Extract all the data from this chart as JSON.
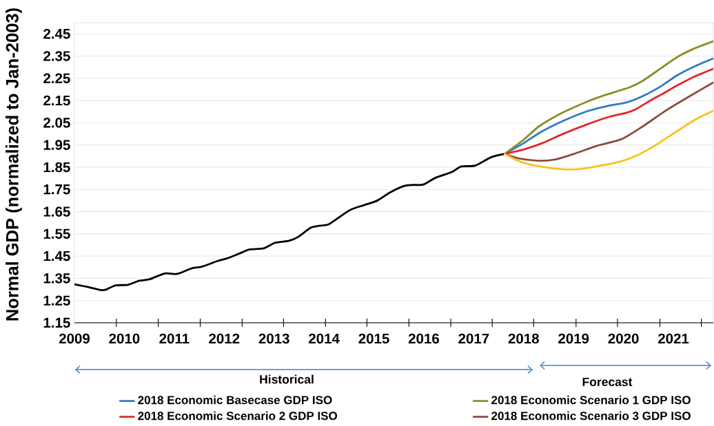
{
  "chart_data": {
    "type": "line",
    "ylabel": "Normal GDP (normalized to Jan-2003)",
    "xlim": [
      2009,
      2021.8
    ],
    "ylim": [
      1.15,
      2.5
    ],
    "xticks": [
      2009,
      {
        "value": 2009.84,
        "label": null
      },
      2010,
      {
        "value": 2010.68,
        "label": null
      },
      2011,
      {
        "value": 2011.52,
        "label": null
      },
      2012,
      {
        "value": 2012.36,
        "label": null
      },
      2013,
      {
        "value": 2013.19,
        "label": null
      },
      2014,
      {
        "value": 2014.03,
        "label": null
      },
      {
        "value": 2014.86,
        "label": null
      },
      2015,
      {
        "value": 2015.7,
        "label": null
      },
      2016,
      {
        "value": 2016.54,
        "label": null
      },
      2017,
      {
        "value": 2017.37,
        "label": null
      },
      2018,
      {
        "value": 2018.2,
        "label": null
      },
      2019,
      {
        "value": 2019.05,
        "label": null
      },
      {
        "value": 2019.88,
        "label": null
      },
      2020,
      {
        "value": 2020.73,
        "label": null
      },
      2021,
      {
        "value": 2021.56,
        "label": null
      }
    ],
    "yticks": [
      1.15,
      1.25,
      1.35,
      1.45,
      1.55,
      1.65,
      1.75,
      1.85,
      1.95,
      2.05,
      2.15,
      2.25,
      2.35,
      2.45
    ],
    "grid": "y",
    "legend": "bottom",
    "marker": "none",
    "line_style": "solid",
    "annotations": [
      "Historical",
      "Forecast"
    ],
    "series": [
      {
        "color": "#000000",
        "x": [
          2009.0,
          2009.29,
          2009.54,
          2009.64,
          2009.82,
          2010.07,
          2010.3,
          2010.51,
          2010.81,
          2011.06,
          2011.36,
          2011.55,
          2011.87,
          2012.05,
          2012.33,
          2012.51,
          2012.79,
          2013.02,
          2013.3,
          2013.48,
          2013.73,
          2013.87,
          2014.08,
          2014.26,
          2014.54,
          2014.81,
          2015.07,
          2015.32,
          2015.6,
          2015.78,
          2015.99,
          2016.24,
          2016.56,
          2016.75,
          2017.03,
          2017.35,
          2017.62
        ],
        "values": [
          1.323,
          1.31,
          1.297,
          1.3,
          1.318,
          1.321,
          1.339,
          1.346,
          1.372,
          1.37,
          1.396,
          1.402,
          1.428,
          1.439,
          1.464,
          1.48,
          1.485,
          1.51,
          1.519,
          1.536,
          1.577,
          1.585,
          1.592,
          1.618,
          1.659,
          1.68,
          1.7,
          1.736,
          1.765,
          1.77,
          1.772,
          1.803,
          1.828,
          1.853,
          1.857,
          1.895,
          1.91
        ]
      },
      {
        "name": "2018 Economic Basecase GDP ISO",
        "color": "#2b7cc4",
        "x": [
          2017.62,
          2017.99,
          2018.36,
          2018.82,
          2019.28,
          2019.69,
          2020.06,
          2020.39,
          2020.75,
          2021.08,
          2021.44,
          2021.79
        ],
        "values": [
          1.91,
          1.957,
          2.01,
          2.061,
          2.102,
          2.126,
          2.141,
          2.17,
          2.214,
          2.264,
          2.305,
          2.338
        ]
      },
      {
        "name": "2018 Economic Scenario 1 GDP ISO",
        "color": "#8c8c26",
        "x": [
          2017.62,
          2017.99,
          2018.31,
          2018.73,
          2019.23,
          2019.6,
          2019.97,
          2020.16,
          2020.39,
          2020.75,
          2021.08,
          2021.4,
          2021.79
        ],
        "values": [
          1.91,
          1.972,
          2.034,
          2.09,
          2.141,
          2.172,
          2.198,
          2.213,
          2.239,
          2.295,
          2.346,
          2.382,
          2.416
        ]
      },
      {
        "name": "2018 Economic Scenario 2 GDP ISO",
        "color": "#e3262a",
        "x": [
          2017.62,
          2017.99,
          2018.36,
          2018.77,
          2019.23,
          2019.69,
          2020.06,
          2020.24,
          2020.57,
          2020.8,
          2021.08,
          2021.44,
          2021.79
        ],
        "values": [
          1.91,
          1.929,
          1.957,
          1.998,
          2.039,
          2.075,
          2.095,
          2.11,
          2.154,
          2.182,
          2.218,
          2.259,
          2.292
        ]
      },
      {
        "name": "2018 Economic Scenario 3 GDP ISO",
        "color": "#8e4b3c",
        "x": [
          2017.62,
          2017.9,
          2018.31,
          2018.64,
          2019.01,
          2019.47,
          2019.97,
          2020.39,
          2020.85,
          2021.31,
          2021.79
        ],
        "values": [
          1.91,
          1.89,
          1.879,
          1.885,
          1.91,
          1.946,
          1.977,
          2.034,
          2.105,
          2.167,
          2.23
        ]
      },
      {
        "color": "#f7c21b",
        "x": [
          2017.62,
          2017.94,
          2018.31,
          2018.77,
          2019.1,
          2019.47,
          2019.92,
          2020.24,
          2020.62,
          2021.08,
          2021.44,
          2021.79
        ],
        "values": [
          1.91,
          1.874,
          1.854,
          1.841,
          1.841,
          1.854,
          1.874,
          1.9,
          1.946,
          2.013,
          2.064,
          2.103
        ]
      }
    ]
  }
}
